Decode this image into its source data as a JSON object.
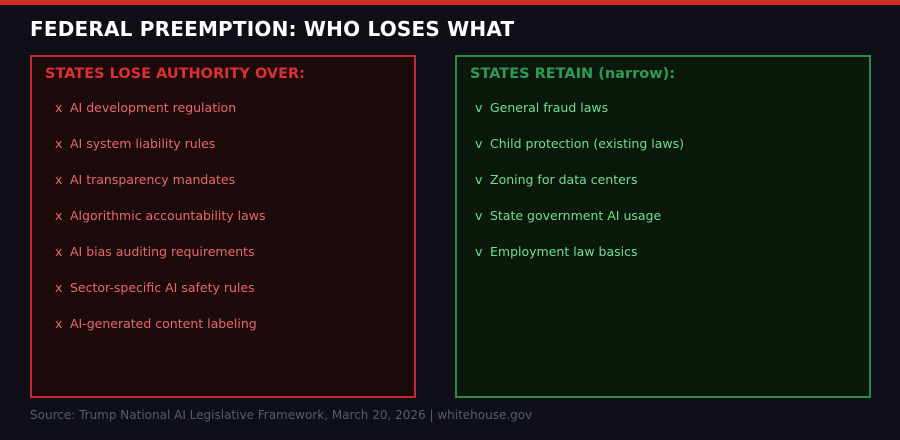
{
  "header": {
    "title": "FEDERAL PREEMPTION: WHO LOSES WHAT"
  },
  "panels": [
    {
      "title": "STATES LOSE AUTHORITY OVER:",
      "marker": "x",
      "items": [
        "AI development regulation",
        "AI system liability rules",
        "AI transparency mandates",
        "Algorithmic accountability laws",
        "AI bias auditing requirements",
        "Sector-specific AI safety rules",
        "AI-generated content labeling"
      ]
    },
    {
      "title": "STATES RETAIN (narrow):",
      "marker": "v",
      "items": [
        "General fraud laws",
        "Child protection (existing laws)",
        "Zoning for data centers",
        "State government AI usage",
        "Employment law basics"
      ]
    }
  ],
  "footer": {
    "source": "Source: Trump National AI Legislative Framework, March 20, 2026 | whitehouse.gov"
  }
}
